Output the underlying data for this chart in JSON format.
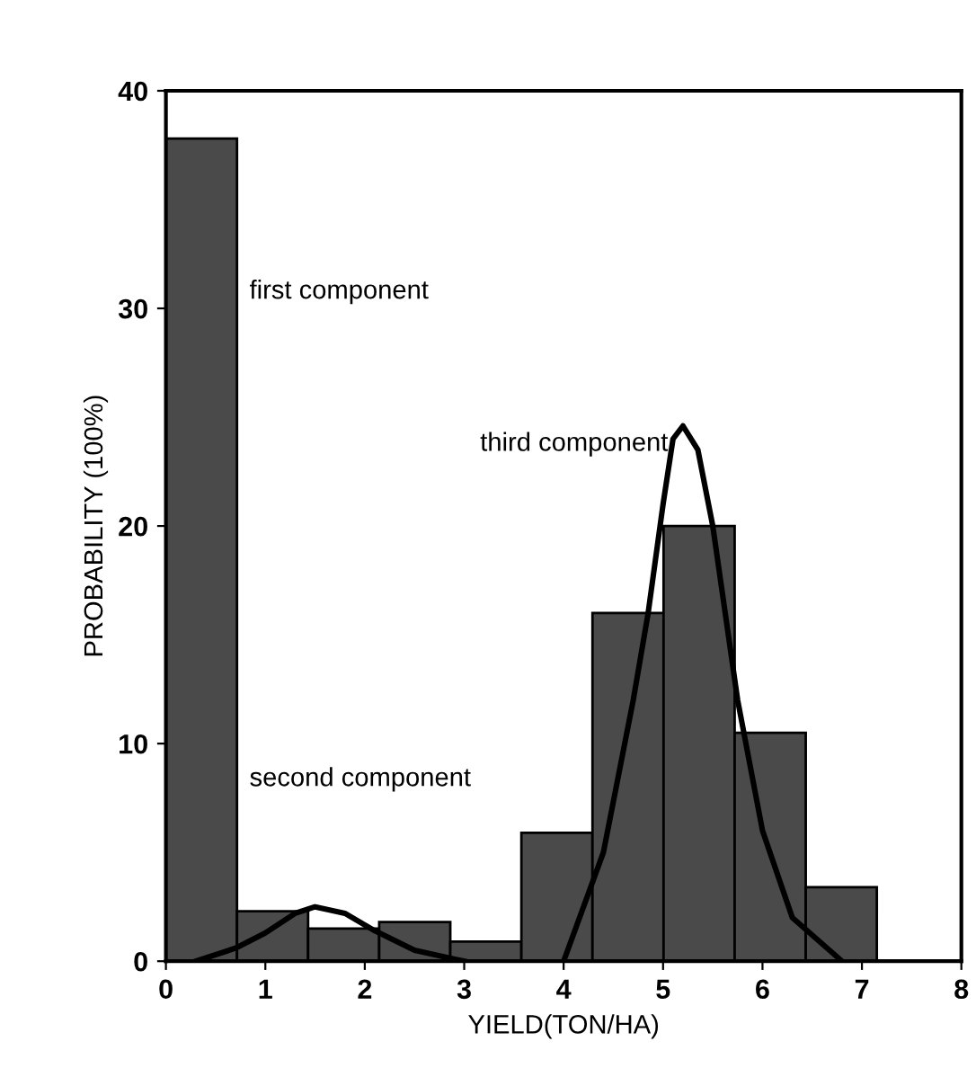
{
  "chart_data": {
    "type": "histogram",
    "xlabel": "YIELD(TON/HA)",
    "ylabel": "PROBABILITY (100%)",
    "bins": [
      0,
      0.715,
      1.43,
      2.145,
      2.86,
      3.575,
      4.29,
      5.005,
      5.72,
      6.435,
      7.15
    ],
    "values": [
      37.8,
      2.3,
      1.5,
      1.8,
      0.9,
      5.9,
      16,
      20,
      10.5,
      3.4
    ],
    "color": "#4a4a4a",
    "series": [
      {
        "type": "line",
        "color": "#000000",
        "x": [
          0.3,
          0.7,
          1.0,
          1.3,
          1.5,
          1.8,
          2.1,
          2.5,
          3.0
        ],
        "values": [
          0,
          0.6,
          1.3,
          2.2,
          2.5,
          2.2,
          1.4,
          0.5,
          0
        ]
      },
      {
        "type": "line",
        "color": "#000000",
        "x": [
          4.0,
          4.4,
          4.7,
          4.85,
          5.0,
          5.1,
          5.2,
          5.35,
          5.5,
          5.75,
          6.0,
          6.3,
          6.8
        ],
        "values": [
          0,
          5,
          12,
          16,
          21,
          24,
          24.6,
          23.5,
          20,
          12,
          6,
          2,
          0
        ]
      }
    ],
    "annotations": [
      "first component",
      "second component",
      "third component"
    ],
    "xlim": [
      0,
      8
    ],
    "ylim": [
      0,
      40
    ],
    "xticks": [
      0,
      1,
      2,
      3,
      4,
      5,
      6,
      7,
      8
    ],
    "yticks": [
      0,
      10,
      20,
      30,
      40
    ],
    "grid": false,
    "legend": false
  }
}
